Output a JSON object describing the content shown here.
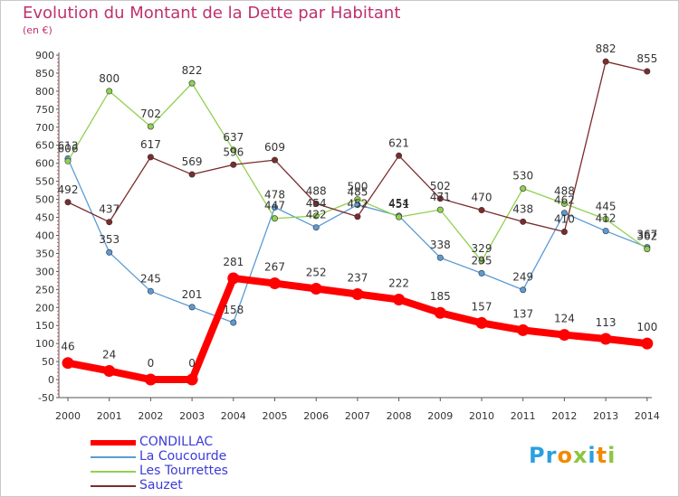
{
  "title": "Evolution du Montant de la Dette par Habitant",
  "unit": "(en €)",
  "logo": {
    "text": "Proxiti",
    "letters": [
      "P",
      "r",
      "o",
      "x",
      "i",
      "t",
      "i"
    ],
    "colors": [
      "#2aa0e0",
      "#2aa0e0",
      "#f28a00",
      "#8cc63f",
      "#2aa0e0",
      "#f28a00",
      "#8cc63f"
    ]
  },
  "chart_data": {
    "type": "line",
    "x": [
      "2000",
      "2001",
      "2002",
      "2003",
      "2004",
      "2005",
      "2006",
      "2007",
      "2008",
      "2009",
      "2010",
      "2011",
      "2012",
      "2013",
      "2014"
    ],
    "ylim": [
      -50,
      900
    ],
    "yticks": [
      -50,
      0,
      50,
      100,
      150,
      200,
      250,
      300,
      350,
      400,
      450,
      500,
      550,
      600,
      650,
      700,
      750,
      800,
      850,
      900
    ],
    "grid": false,
    "legend_position": "bottom-left",
    "series": [
      {
        "name": "CONDILLAC",
        "color": "#ff0000",
        "values": [
          46,
          24,
          0,
          0,
          281,
          267,
          252,
          237,
          222,
          185,
          157,
          137,
          124,
          113,
          100
        ]
      },
      {
        "name": "La Coucourde",
        "color": "#5b9bd5",
        "values": [
          613,
          353,
          245,
          201,
          158,
          478,
          422,
          485,
          454,
          338,
          295,
          249,
          462,
          412,
          367
        ]
      },
      {
        "name": "Les Tourrettes",
        "color": "#92d050",
        "values": [
          606,
          800,
          702,
          822,
          637,
          447,
          454,
          500,
          451,
          471,
          329,
          530,
          488,
          445,
          362
        ]
      },
      {
        "name": "Sauzet",
        "color": "#7b2c2c",
        "values": [
          492,
          437,
          617,
          569,
          596,
          609,
          488,
          452,
          621,
          502,
          470,
          438,
          410,
          882,
          855
        ]
      }
    ],
    "data_labels": {
      "CONDILLAC": [
        "46",
        "24",
        "0",
        "0",
        "281",
        "267",
        "252",
        "237",
        "222",
        "185",
        "157",
        "137",
        "124",
        "113",
        "100"
      ],
      "La Coucourde": [
        "613",
        "353",
        "245",
        "201",
        "158",
        "478",
        "422",
        "485",
        "454",
        "338",
        "295",
        "249",
        "462",
        "412",
        "367"
      ],
      "Les Tourrettes": [
        "606",
        "800",
        "702",
        "822",
        "637",
        "447",
        "454",
        "500",
        "451",
        "471",
        "329",
        "530",
        "488",
        "445",
        "362"
      ],
      "Sauzet": [
        "492",
        "437",
        "617",
        "569",
        "596",
        "609",
        "488",
        "452",
        "621",
        "502",
        "470",
        "438",
        "410",
        "882",
        "855"
      ]
    }
  }
}
